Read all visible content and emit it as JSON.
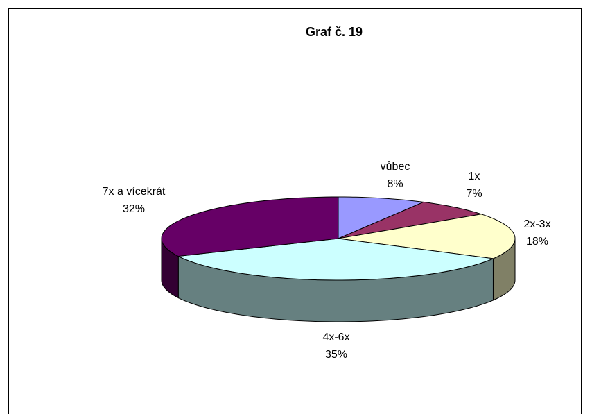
{
  "chart_data": {
    "type": "pie",
    "title": "Graf č. 19",
    "categories": [
      "vůbec",
      "1x",
      "2x-3x",
      "4x-6x",
      "7x a vícekrát"
    ],
    "values": [
      8,
      7,
      18,
      35,
      32
    ],
    "value_labels": [
      "8%",
      "7%",
      "18%",
      "35%",
      "32%"
    ],
    "colors": [
      "#9999ff",
      "#993366",
      "#ffffcc",
      "#ccffff",
      "#660066"
    ]
  }
}
